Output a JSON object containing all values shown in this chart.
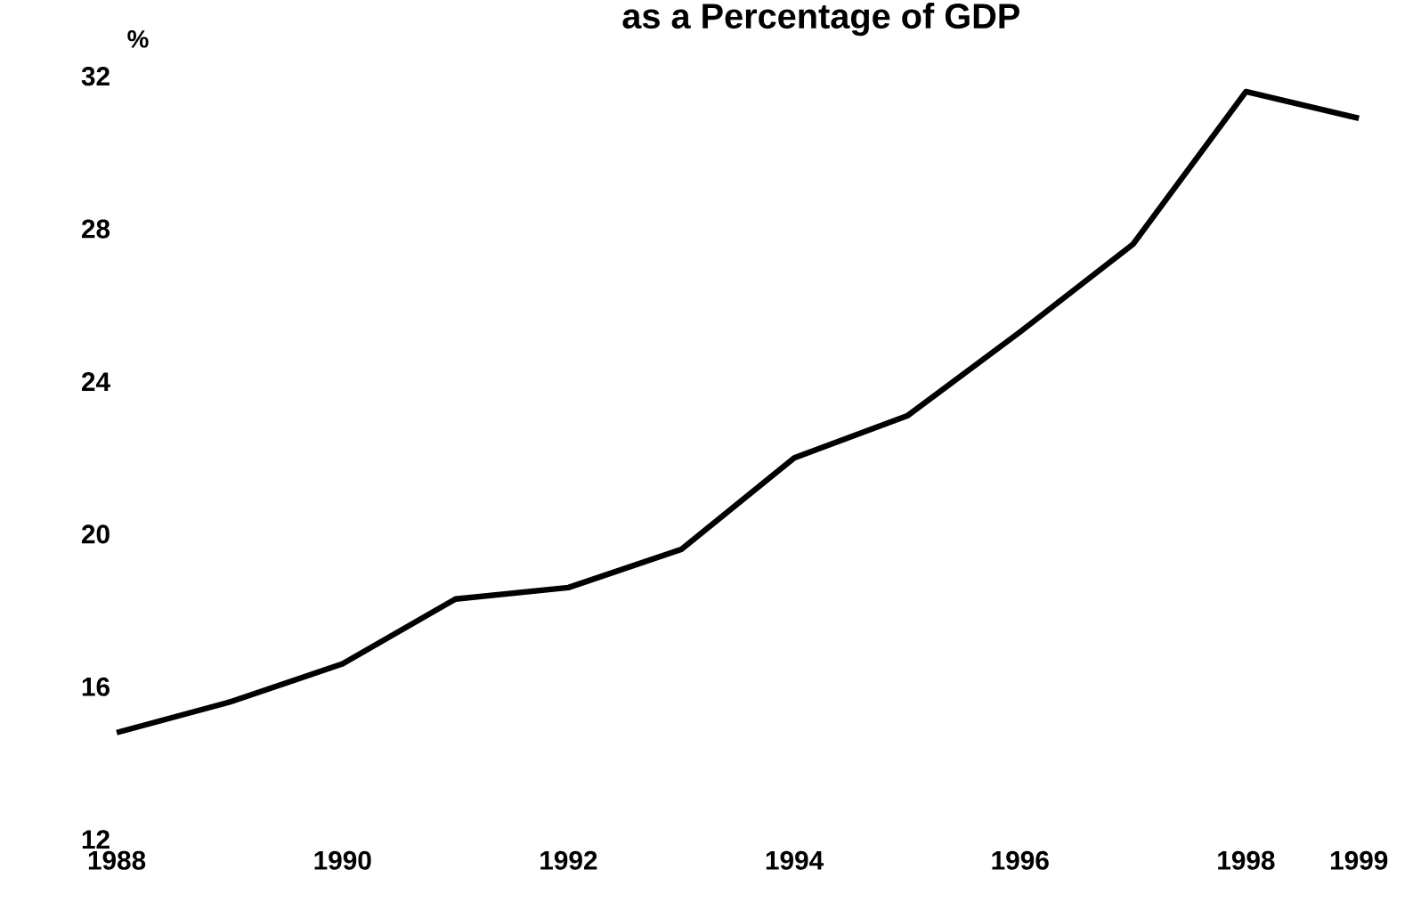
{
  "chart_data": {
    "type": "line",
    "title": "as a Percentage of GDP",
    "ylabel": "%",
    "x": [
      1988,
      1989,
      1990,
      1991,
      1992,
      1993,
      1994,
      1995,
      1996,
      1997,
      1998,
      1999
    ],
    "series": [
      {
        "color": "#000000",
        "values": [
          14.8,
          15.6,
          16.6,
          18.3,
          18.6,
          19.6,
          22.0,
          23.1,
          25.3,
          27.6,
          31.6,
          30.9
        ]
      }
    ],
    "xlim": [
      1988,
      1999
    ],
    "xticks": [
      1988,
      1990,
      1992,
      1994,
      1996,
      1998,
      1999
    ],
    "ylim": [
      12,
      32
    ],
    "yticks": [
      12,
      16,
      20,
      24,
      28,
      32
    ],
    "grid": false,
    "marker": "none",
    "line_style": "solid"
  }
}
